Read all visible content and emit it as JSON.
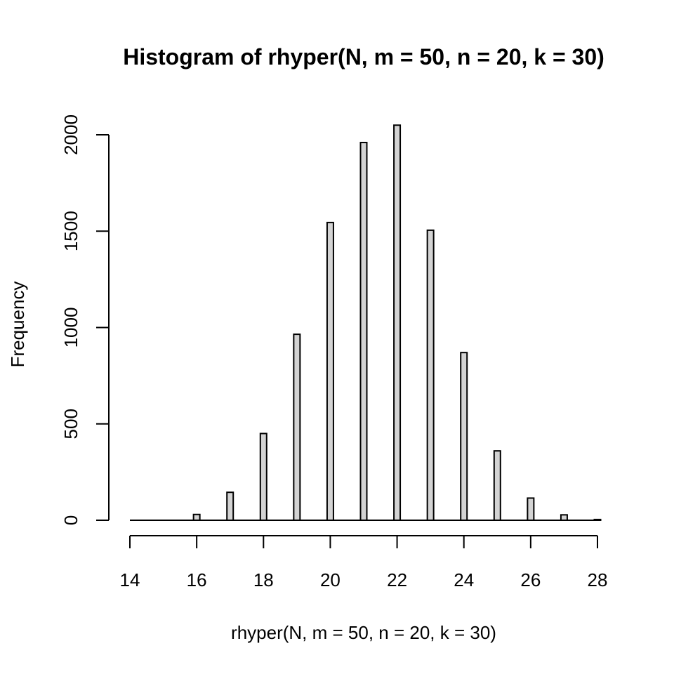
{
  "chart_data": {
    "type": "bar",
    "title": "Histogram of rhyper(N, m = 50, n = 20, k = 30)",
    "xlabel": "rhyper(N, m = 50, n = 20, k = 30)",
    "ylabel": "Frequency",
    "xlim": [
      14,
      28
    ],
    "ylim": [
      0,
      2000
    ],
    "xticks": [
      14,
      16,
      18,
      20,
      22,
      24,
      26,
      28
    ],
    "yticks": [
      0,
      500,
      1000,
      1500,
      2000
    ],
    "categories": [
      14,
      15,
      16,
      17,
      18,
      19,
      20,
      21,
      22,
      23,
      24,
      25,
      26,
      27,
      28
    ],
    "values": [
      0,
      0,
      30,
      145,
      450,
      965,
      1545,
      1960,
      2050,
      1505,
      870,
      360,
      115,
      28,
      4
    ],
    "colors": {
      "bar_fill": "#d3d3d3",
      "bar_stroke": "#000000"
    }
  }
}
